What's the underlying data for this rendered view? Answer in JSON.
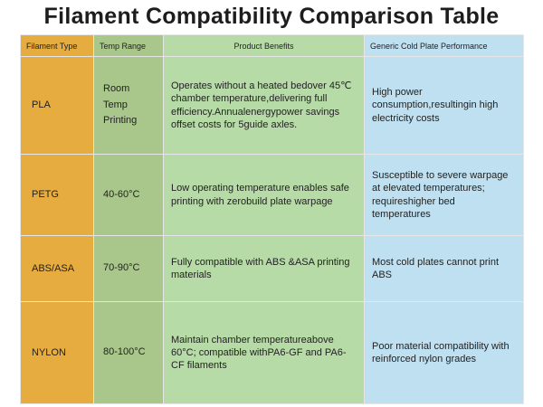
{
  "title": "Filament Compatibility Comparison Table",
  "table": {
    "header": [
      "Filament Type",
      "Temp Range",
      "Product Benefits",
      "Generic Cold Plate Performance"
    ],
    "rows": [
      [
        "PLA",
        "Room Temp Printing",
        "Operates without a heated bedover 45℃ chamber temperature,delivering full efficiency.Annualenergypower savings offset costs for 5guide axles.",
        "High power consumption,resultingin high electricity costs"
      ],
      [
        "PETG",
        "40-60°C",
        "Low operating temperature enables safe printing with zerobuild plate warpage",
        "Susceptible to severe warpage at elevated temperatures; requireshigher bed temperatures"
      ],
      [
        "ABS/ASA",
        "70-90°C",
        "Fully compatible with ABS &ASA printing materials",
        "Most cold plates cannot print ABS"
      ],
      [
        "NYLON",
        "80-100°C",
        "Maintain chamber temperatureabove 60°C; compatible withPA6-GF and PA6-CF filaments",
        "Poor material compatibility with reinforced nylon grades"
      ]
    ]
  }
}
